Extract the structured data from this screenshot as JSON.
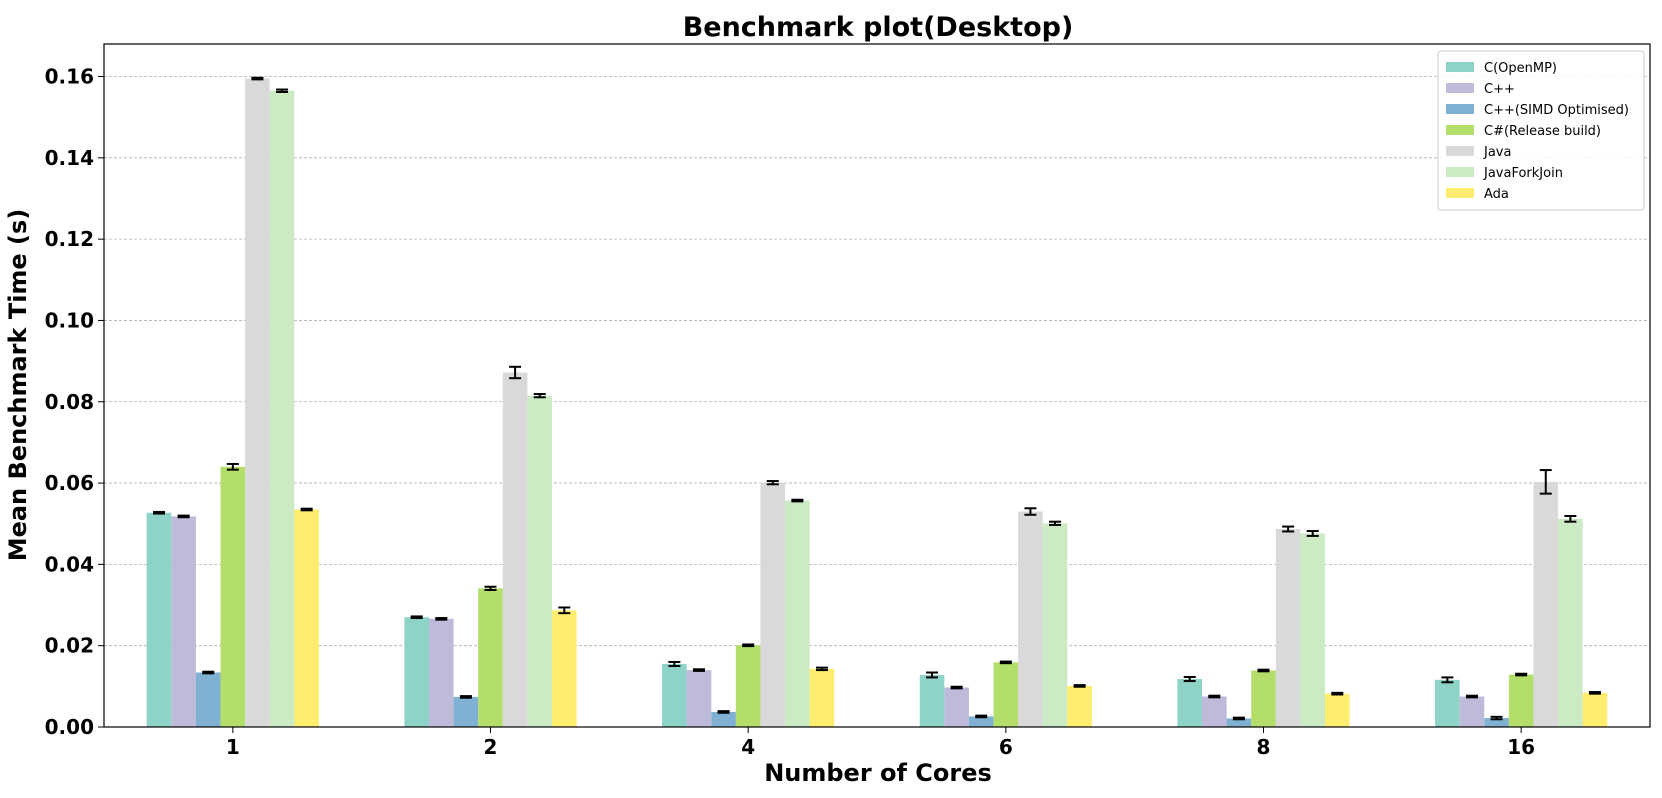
{
  "chart_data": {
    "type": "bar",
    "title": "Benchmark plot(Desktop)",
    "xlabel": "Number of Cores",
    "ylabel": "Mean Benchmark Time (s)",
    "categories": [
      "1",
      "2",
      "4",
      "6",
      "8",
      "16"
    ],
    "ylim": [
      0,
      0.168
    ],
    "yticks": [
      "0.00",
      "0.02",
      "0.04",
      "0.06",
      "0.08",
      "0.10",
      "0.12",
      "0.14",
      "0.16"
    ],
    "grid": "horizontal dashed",
    "legend_position": "top-right",
    "series": [
      {
        "name": "C(OpenMP)",
        "color": "#8dd3c7",
        "values": [
          0.0527,
          0.027,
          0.0155,
          0.0128,
          0.0118,
          0.0116
        ],
        "errors": [
          0.0002,
          0.0002,
          0.0005,
          0.0006,
          0.0005,
          0.0006
        ]
      },
      {
        "name": "C++",
        "color": "#bebada",
        "values": [
          0.0518,
          0.0266,
          0.014,
          0.0097,
          0.0075,
          0.0075
        ],
        "errors": [
          0.0002,
          0.0002,
          0.0002,
          0.0002,
          0.0002,
          0.0002
        ]
      },
      {
        "name": "C++(SIMD Optimised)",
        "color": "#80b1d3",
        "values": [
          0.0134,
          0.0074,
          0.0037,
          0.0026,
          0.0021,
          0.0022
        ],
        "errors": [
          0.0002,
          0.0002,
          0.0002,
          0.0002,
          0.0002,
          0.0003
        ]
      },
      {
        "name": "C#(Release build)",
        "color": "#b3de69",
        "values": [
          0.064,
          0.0341,
          0.0201,
          0.0159,
          0.0139,
          0.0129
        ],
        "errors": [
          0.0007,
          0.0004,
          0.0002,
          0.0002,
          0.0002,
          0.0002
        ]
      },
      {
        "name": "Java",
        "color": "#d9d9d9",
        "values": [
          0.1595,
          0.0872,
          0.0601,
          0.053,
          0.0487,
          0.0603
        ],
        "errors": [
          0.0002,
          0.0014,
          0.0004,
          0.0008,
          0.0006,
          0.0029
        ]
      },
      {
        "name": "JavaForkJoin",
        "color": "#ccebc5",
        "values": [
          0.1565,
          0.0815,
          0.0557,
          0.0501,
          0.0476,
          0.0512
        ],
        "errors": [
          0.0003,
          0.0004,
          0.0002,
          0.0004,
          0.0006,
          0.0007
        ]
      },
      {
        "name": "Ada",
        "color": "#ffed6f",
        "values": [
          0.0535,
          0.0287,
          0.0143,
          0.0101,
          0.0082,
          0.0084
        ],
        "errors": [
          0.0002,
          0.0007,
          0.0003,
          0.0002,
          0.0002,
          0.0002
        ]
      }
    ]
  }
}
